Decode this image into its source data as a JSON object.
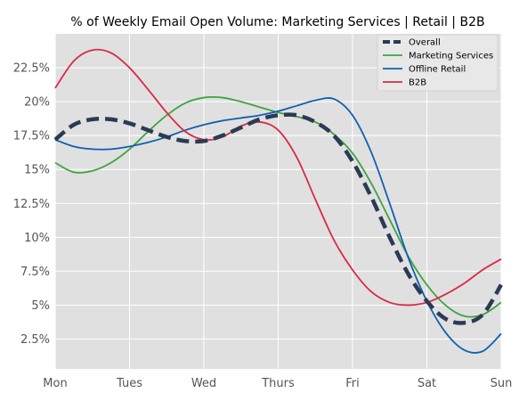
{
  "chart_data": {
    "type": "line",
    "title": "% of Weekly Email Open Volume: Marketing Services | Retail | B2B",
    "xlabel": "",
    "ylabel": "",
    "x_ticks": [
      "Mon",
      "Tues",
      "Wed",
      "Thurs",
      "Fri",
      "Sat",
      "Sun"
    ],
    "xlim": [
      0,
      6
    ],
    "ylim": [
      0.3,
      25.0
    ],
    "y_ticks": [
      2.5,
      5,
      7.5,
      10,
      12.5,
      15,
      17.5,
      20,
      22.5
    ],
    "y_tick_labels": [
      "2.5%",
      "5%",
      "7.5%",
      "10%",
      "12.5%",
      "15%",
      "17.5%",
      "20%",
      "22.5%"
    ],
    "grid": true,
    "legend_position": "top-right",
    "background": "#e0e0e0",
    "series": [
      {
        "name": "Overall",
        "color": "#2b3a55",
        "style": "dashed",
        "x": [
          0,
          0.25,
          0.5,
          0.75,
          1.0,
          1.25,
          1.5,
          1.75,
          2.0,
          2.25,
          2.5,
          2.75,
          3.0,
          3.25,
          3.5,
          3.75,
          4.0,
          4.25,
          4.5,
          4.75,
          5.0,
          5.25,
          5.5,
          5.75,
          6.0
        ],
        "y": [
          17.2,
          18.3,
          18.7,
          18.7,
          18.4,
          17.9,
          17.4,
          17.1,
          17.1,
          17.5,
          18.1,
          18.7,
          19.0,
          19.0,
          18.5,
          17.5,
          15.6,
          13.0,
          10.0,
          7.3,
          5.3,
          4.0,
          3.7,
          4.3,
          6.5
        ]
      },
      {
        "name": "Marketing Services",
        "color": "#3fa33f",
        "style": "solid",
        "x": [
          0,
          0.25,
          0.5,
          0.75,
          1.0,
          1.25,
          1.5,
          1.75,
          2.0,
          2.25,
          2.5,
          2.75,
          3.0,
          3.25,
          3.5,
          3.75,
          4.0,
          4.25,
          4.5,
          4.75,
          5.0,
          5.25,
          5.5,
          5.75,
          6.0
        ],
        "y": [
          15.5,
          14.8,
          14.9,
          15.5,
          16.5,
          17.8,
          19.0,
          19.9,
          20.3,
          20.3,
          20.0,
          19.6,
          19.2,
          18.9,
          18.5,
          17.6,
          16.2,
          14.0,
          11.3,
          8.6,
          6.5,
          5.0,
          4.2,
          4.3,
          5.2
        ]
      },
      {
        "name": "Offline Retail",
        "color": "#1060b0",
        "style": "solid",
        "x": [
          0,
          0.25,
          0.5,
          0.75,
          1.0,
          1.25,
          1.5,
          1.75,
          2.0,
          2.25,
          2.5,
          2.75,
          3.0,
          3.25,
          3.5,
          3.75,
          4.0,
          4.25,
          4.5,
          4.75,
          5.0,
          5.25,
          5.5,
          5.75,
          6.0
        ],
        "y": [
          17.2,
          16.7,
          16.5,
          16.5,
          16.7,
          17.0,
          17.4,
          17.9,
          18.3,
          18.6,
          18.8,
          19.0,
          19.3,
          19.7,
          20.1,
          20.2,
          19.0,
          16.3,
          12.5,
          8.5,
          5.3,
          3.0,
          1.7,
          1.6,
          2.9
        ]
      },
      {
        "name": "B2B",
        "color": "#d92a46",
        "style": "solid",
        "x": [
          0,
          0.25,
          0.5,
          0.75,
          1.0,
          1.25,
          1.5,
          1.75,
          2.0,
          2.25,
          2.5,
          2.75,
          3.0,
          3.25,
          3.5,
          3.75,
          4.0,
          4.25,
          4.5,
          4.75,
          5.0,
          5.25,
          5.5,
          5.75,
          6.0
        ],
        "y": [
          21.0,
          23.0,
          23.8,
          23.6,
          22.5,
          20.9,
          19.2,
          17.8,
          17.2,
          17.4,
          18.2,
          18.5,
          17.9,
          15.9,
          12.8,
          9.8,
          7.6,
          6.0,
          5.2,
          5.0,
          5.2,
          5.8,
          6.6,
          7.6,
          8.4
        ]
      }
    ]
  }
}
